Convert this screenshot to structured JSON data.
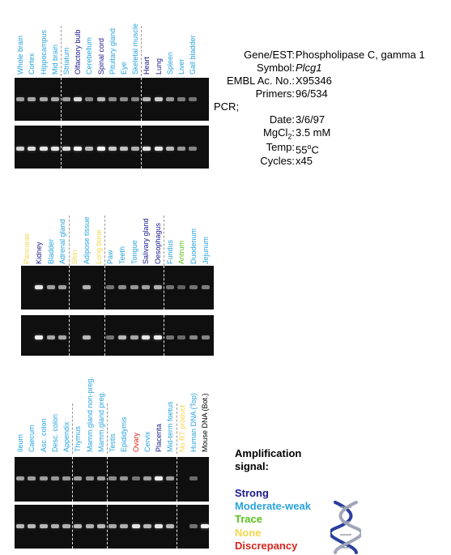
{
  "colors": {
    "strong": "#1a1a8c",
    "moderate": "#29a3dd",
    "trace": "#5bc21e",
    "none": "#f2d64b",
    "discrepancy": "#d4261c"
  },
  "panels": [
    {
      "lanes": [
        {
          "name": "Whole brain",
          "level": "moderate",
          "b1": 0.45,
          "b2": 0.75
        },
        {
          "name": "Cortex",
          "level": "moderate",
          "b1": 0.5,
          "b2": 0.8
        },
        {
          "name": "Hippocampus",
          "level": "moderate",
          "b1": 0.5,
          "b2": 0.85
        },
        {
          "name": "Mid brain",
          "level": "moderate",
          "b1": 0.5,
          "b2": 0.85
        },
        {
          "name": "Striatum",
          "level": "moderate",
          "b1": 0.45,
          "b2": 0.8
        },
        {
          "name": "Olfactory bulb",
          "level": "strong",
          "b1": 0.8,
          "b2": 0.95
        },
        {
          "name": "Cerebellum",
          "level": "moderate",
          "b1": 0.3,
          "b2": 0.6
        },
        {
          "name": "Spinal cord",
          "level": "strong",
          "b1": 0.6,
          "b2": 0.95
        },
        {
          "name": "Pituitary gland",
          "level": "moderate",
          "b1": 0.35,
          "b2": 0.7
        },
        {
          "name": "Eye",
          "level": "moderate",
          "b1": 0.35,
          "b2": 0.65
        },
        {
          "name": "Skeletal muscle",
          "level": "moderate",
          "b1": 0.3,
          "b2": 0.55
        },
        {
          "name": "Heart",
          "level": "strong",
          "b1": 0.6,
          "b2": 0.85
        },
        {
          "name": "Lung",
          "level": "strong",
          "b1": 0.7,
          "b2": 0.85
        },
        {
          "name": "Spleen",
          "level": "moderate",
          "b1": 0.4,
          "b2": 0.6
        },
        {
          "name": "Liver",
          "level": "moderate",
          "b1": 0.25,
          "b2": 0.4
        },
        {
          "name": "Gall bladder",
          "level": "moderate",
          "b1": 0.2,
          "b2": 0.3
        }
      ]
    },
    {
      "lanes": [
        {
          "name": "Pancreas",
          "level": "none",
          "b1": 0.0,
          "b2": 0.0
        },
        {
          "name": "Kidney",
          "level": "strong",
          "b1": 0.85,
          "b2": 0.9
        },
        {
          "name": "Bladder",
          "level": "moderate",
          "b1": 0.45,
          "b2": 0.5
        },
        {
          "name": "Adrenal gland",
          "level": "moderate",
          "b1": 0.45,
          "b2": 0.5
        },
        {
          "name": "Skin",
          "level": "none",
          "b1": 0.0,
          "b2": 0.0
        },
        {
          "name": "Adipose tissue",
          "level": "moderate",
          "b1": 0.55,
          "b2": 0.6
        },
        {
          "name": "Long bone",
          "level": "none",
          "b1": 0.0,
          "b2": 0.0
        },
        {
          "name": "Paw",
          "level": "moderate",
          "b1": 0.2,
          "b2": 0.2
        },
        {
          "name": "Teeth",
          "level": "moderate",
          "b1": 0.35,
          "b2": 0.6
        },
        {
          "name": "Tongue",
          "level": "moderate",
          "b1": 0.4,
          "b2": 0.5
        },
        {
          "name": "Salivary gland",
          "level": "strong",
          "b1": 0.45,
          "b2": 0.85
        },
        {
          "name": "Oesophagus",
          "level": "strong",
          "b1": 0.55,
          "b2": 0.9
        },
        {
          "name": "Fundus",
          "level": "moderate",
          "b1": 0.2,
          "b2": 0.2
        },
        {
          "name": "Antrum",
          "level": "trace",
          "b1": 0.1,
          "b2": 0.15
        },
        {
          "name": "Duodenum",
          "level": "moderate",
          "b1": 0.2,
          "b2": 0.3
        },
        {
          "name": "Jejunum",
          "level": "moderate",
          "b1": 0.25,
          "b2": 0.3
        }
      ]
    },
    {
      "lanes": [
        {
          "name": "Ileum",
          "level": "moderate",
          "b1": 0.45,
          "b2": 0.6
        },
        {
          "name": "Caecum",
          "level": "moderate",
          "b1": 0.45,
          "b2": 0.6
        },
        {
          "name": "Asc. colon",
          "level": "moderate",
          "b1": 0.45,
          "b2": 0.6
        },
        {
          "name": "Desc. colon",
          "level": "moderate",
          "b1": 0.4,
          "b2": 0.55
        },
        {
          "name": "Appendix",
          "level": "moderate",
          "b1": 0.4,
          "b2": 0.55
        },
        {
          "name": "Thymus",
          "level": "moderate",
          "b1": 0.45,
          "b2": 0.6
        },
        {
          "name": "Mamm.gland non-preg.",
          "level": "moderate",
          "b1": 0.4,
          "b2": 0.55
        },
        {
          "name": "Mamm.gland preg.",
          "level": "moderate",
          "b1": 0.45,
          "b2": 0.6
        },
        {
          "name": "Testis",
          "level": "moderate",
          "b1": 0.35,
          "b2": 0.5
        },
        {
          "name": "Epididymis",
          "level": "moderate",
          "b1": 0.4,
          "b2": 0.55
        },
        {
          "name": "Ovary",
          "level": "discrepancy",
          "b1": 0.2,
          "b2": 0.85
        },
        {
          "name": "Cervix",
          "level": "moderate",
          "b1": 0.45,
          "b2": 0.6
        },
        {
          "name": "Placenta",
          "level": "strong",
          "b1": 0.9,
          "b2": 0.85
        },
        {
          "name": "Mid-term foetus",
          "level": "moderate",
          "b1": 0.45,
          "b2": 0.6
        },
        {
          "name": "No RT product",
          "level": "none",
          "b1": 0.0,
          "b2": 0.0
        },
        {
          "name": "Human DNA (Top)",
          "level": "moderate",
          "b1": 0.15,
          "b2": 0.2
        },
        {
          "name": "Mouse DNA (Bot.)",
          "level": "black",
          "b1": 0.0,
          "b2": 0.95
        }
      ]
    }
  ],
  "info": {
    "gene_label": "Gene/EST:",
    "gene_value": "Phospholipase C, gamma 1",
    "symbol_label": "Symbol:",
    "symbol_value": "Plcg1",
    "embl_label": "EMBL Ac. No.:",
    "embl_value": "X95346",
    "primers_label": "Primers:",
    "primers_value": "96/534",
    "pcr_label": "PCR;",
    "date_label": "Date:",
    "date_value": "3/6/97",
    "mgcl_label_main": "MgCl",
    "mgcl_label_sub": "2",
    "mgcl_label_colon": ":",
    "mgcl_value": "3.5 mM",
    "temp_label": "Temp:",
    "temp_value_num": "55",
    "temp_value_sup": "o",
    "temp_value_unit": "C",
    "cycles_label": "Cycles:",
    "cycles_value": "x45"
  },
  "legend": {
    "title_line1": "Amplification",
    "title_line2": "signal:",
    "strong": "Strong",
    "moderate": "Moderate-weak",
    "trace": "Trace",
    "none": "None",
    "discrepancy": "Discrepancy"
  }
}
